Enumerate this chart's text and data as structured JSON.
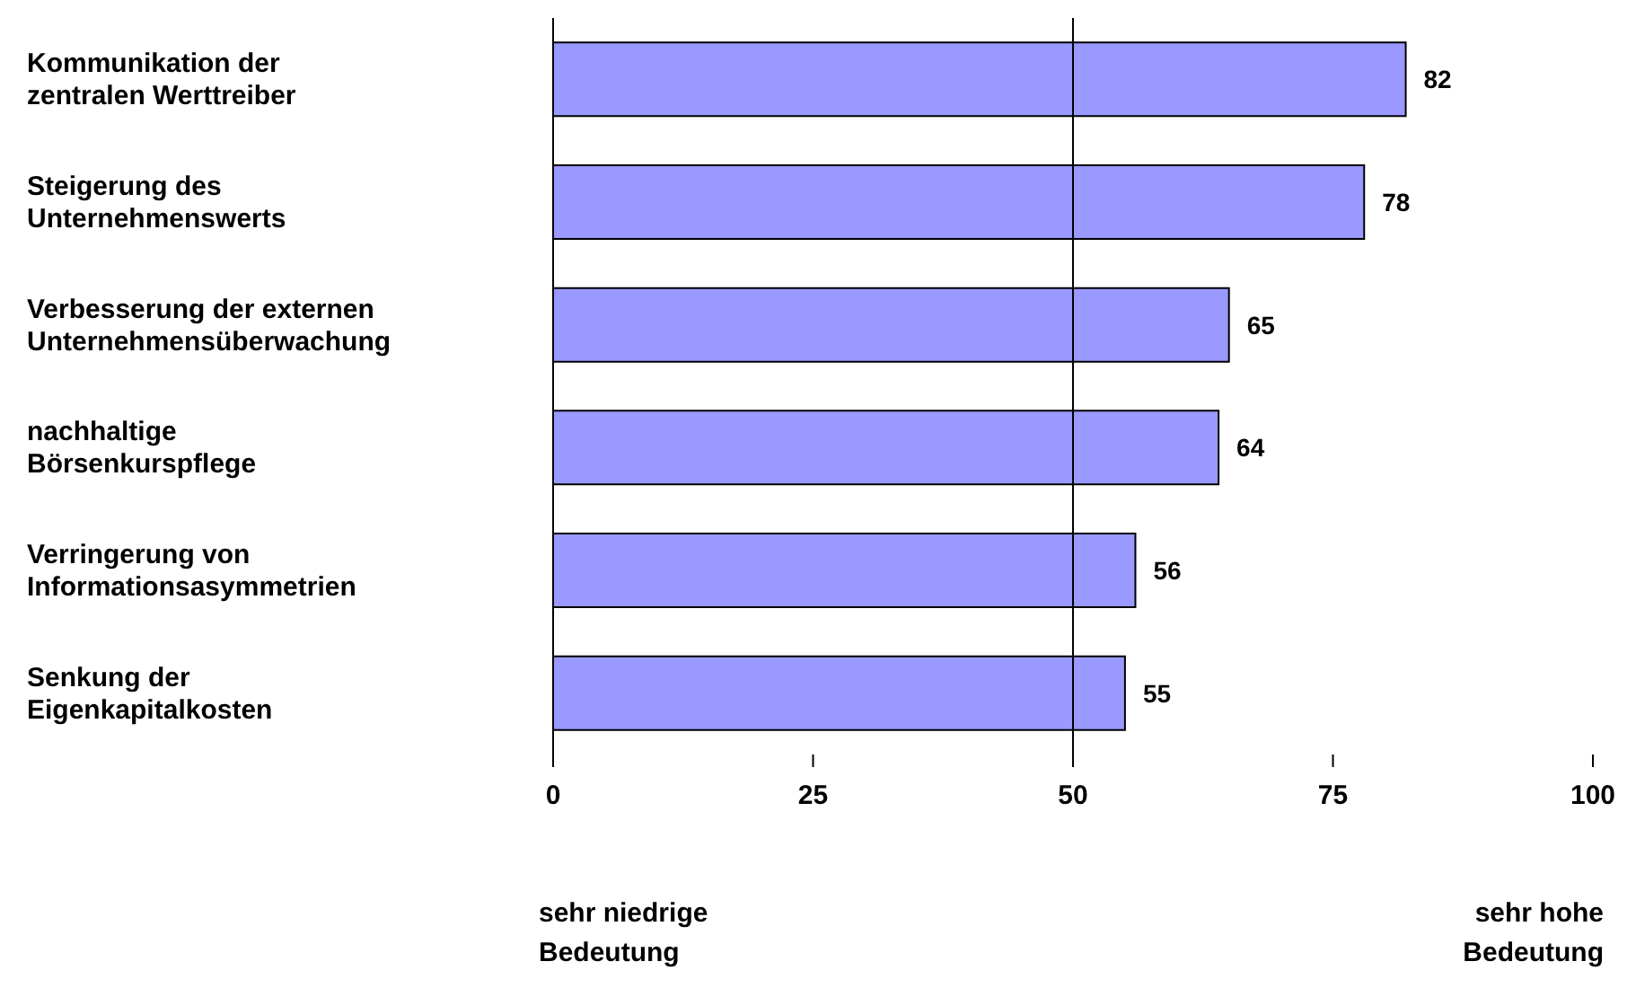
{
  "chart_data": {
    "type": "bar",
    "orientation": "horizontal",
    "categories": [
      "Kommunikation der\nzentralen Werttreiber",
      "Steigerung des\nUnternehmenswerts",
      "Verbesserung der externen\nUnternehmensüberwachung",
      "nachhaltige\nBörsenkurspflege",
      "Verringerung von\nInformationsasymmetrien",
      "Senkung der\nEigenkapitalkosten"
    ],
    "values": [
      82,
      78,
      65,
      64,
      56,
      55
    ],
    "color": "#9999ff",
    "xlim": [
      0,
      100
    ],
    "xticks": [
      0,
      25,
      50,
      75,
      100
    ],
    "ref_lines": [
      {
        "axis": "x",
        "value": 50,
        "color": "#000000"
      }
    ],
    "annotations": [
      "sehr niedrige\nBedeutung",
      "sehr hohe\nBedeutung"
    ],
    "data_labels": true,
    "grid": false,
    "legend": false
  }
}
